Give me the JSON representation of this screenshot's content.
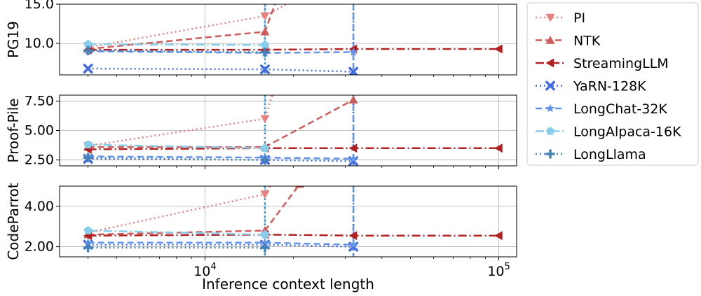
{
  "chart_data": {
    "type": "line",
    "xlabel": "Inference context length",
    "x_scale": "log",
    "xlim": [
      3200,
      115000
    ],
    "x_ticks": [
      {
        "value": 10000,
        "base": "10",
        "exp": "4"
      },
      {
        "value": 100000,
        "base": "10",
        "exp": "5"
      }
    ],
    "grid": true,
    "legend_position": "right",
    "series": [
      {
        "name": "PI",
        "color": "#e88080",
        "linestyle": "dotted",
        "marker": "triangle-down"
      },
      {
        "name": "NTK",
        "color": "#cd5c5c",
        "linestyle": "dashed",
        "marker": "triangle-up"
      },
      {
        "name": "StreamingLLM",
        "color": "#b22222",
        "linestyle": "dashdot",
        "marker": "triangle-left"
      },
      {
        "name": "YaRN-128K",
        "color": "#4169e1",
        "linestyle": "dotted",
        "marker": "x"
      },
      {
        "name": "LongChat-32K",
        "color": "#6495ed",
        "linestyle": "dashed",
        "marker": "star"
      },
      {
        "name": "LongAlpaca-16K",
        "color": "#87ceeb",
        "linestyle": "dashdot",
        "marker": "pentagon"
      },
      {
        "name": "LongLlama",
        "color": "#4682b4",
        "linestyle": "dotted",
        "marker": "plus"
      }
    ],
    "panels": [
      {
        "ylabel": "PG19",
        "ylim": [
          6,
          15
        ],
        "yticks": [
          10,
          15
        ],
        "ytick_labels": [
          "10.0",
          "15.0"
        ],
        "data": {
          "PI": [
            [
              4000,
              9.5
            ],
            [
              16000,
              13.5
            ],
            [
              20000,
              15.5
            ]
          ],
          "NTK": [
            [
              4000,
              9.3
            ],
            [
              16000,
              11.5
            ],
            [
              17500,
              15.5
            ]
          ],
          "StreamingLLM": [
            [
              4000,
              9.2
            ],
            [
              16000,
              9.2
            ],
            [
              32000,
              9.3
            ],
            [
              100000,
              9.3
            ]
          ],
          "YaRN-128K": [
            [
              4000,
              6.8
            ],
            [
              16000,
              6.7
            ],
            [
              32000,
              6.4
            ]
          ],
          "LongChat-32K": [
            [
              4000,
              9.0
            ],
            [
              16000,
              8.8
            ],
            [
              32000,
              8.9
            ]
          ],
          "LongAlpaca-16K": [
            [
              4000,
              9.9
            ],
            [
              16000,
              9.8
            ]
          ],
          "LongLlama": [
            [
              4000,
              9.1
            ],
            [
              16000,
              8.9
            ]
          ]
        },
        "blowups": [
          {
            "series": "LongAlpaca-16K",
            "x": 16000,
            "style": "dashdot"
          },
          {
            "series": "LongLlama",
            "x": 16000,
            "style": "dotted"
          },
          {
            "series": "YaRN-128K",
            "x": 32000,
            "style": "dotted"
          },
          {
            "series": "LongChat-32K",
            "x": 32000,
            "style": "dashed"
          }
        ]
      },
      {
        "ylabel": "Proof-Pile",
        "ylim": [
          2.0,
          8.0
        ],
        "yticks": [
          2.5,
          5.0,
          7.5
        ],
        "ytick_labels": [
          "2.50",
          "5.00",
          "7.50"
        ],
        "data": {
          "PI": [
            [
              4000,
              3.7
            ],
            [
              16000,
              6.0
            ],
            [
              17000,
              8.2
            ]
          ],
          "NTK": [
            [
              4000,
              3.6
            ],
            [
              16000,
              3.6
            ],
            [
              32000,
              7.6
            ]
          ],
          "StreamingLLM": [
            [
              4000,
              3.4
            ],
            [
              16000,
              3.5
            ],
            [
              32000,
              3.5
            ],
            [
              100000,
              3.5
            ]
          ],
          "YaRN-128K": [
            [
              4000,
              2.6
            ],
            [
              16000,
              2.5
            ],
            [
              32000,
              2.4
            ]
          ],
          "LongChat-32K": [
            [
              4000,
              2.8
            ],
            [
              16000,
              2.7
            ],
            [
              32000,
              2.6
            ]
          ],
          "LongAlpaca-16K": [
            [
              4000,
              3.8
            ],
            [
              16000,
              3.5
            ]
          ],
          "LongLlama": [
            [
              4000,
              2.7
            ],
            [
              16000,
              2.5
            ]
          ]
        },
        "blowups": [
          {
            "series": "LongAlpaca-16K",
            "x": 16000,
            "style": "dashdot"
          },
          {
            "series": "LongLlama",
            "x": 16000,
            "style": "dotted"
          },
          {
            "series": "YaRN-128K",
            "x": 32000,
            "style": "dotted"
          },
          {
            "series": "LongChat-32K",
            "x": 32000,
            "style": "dashed"
          }
        ]
      },
      {
        "ylabel": "CodeParrot",
        "ylim": [
          1.5,
          5.0
        ],
        "yticks": [
          2.0,
          4.0
        ],
        "ytick_labels": [
          "2.00",
          "4.00"
        ],
        "data": {
          "PI": [
            [
              4000,
              2.7
            ],
            [
              16000,
              4.6
            ],
            [
              17000,
              5.2
            ]
          ],
          "NTK": [
            [
              4000,
              2.6
            ],
            [
              16000,
              2.8
            ],
            [
              21000,
              5.1
            ]
          ],
          "StreamingLLM": [
            [
              4000,
              2.55
            ],
            [
              16000,
              2.6
            ],
            [
              32000,
              2.55
            ],
            [
              100000,
              2.55
            ]
          ],
          "YaRN-128K": [
            [
              4000,
              2.1
            ],
            [
              16000,
              2.1
            ],
            [
              32000,
              2.0
            ]
          ],
          "LongChat-32K": [
            [
              4000,
              2.2
            ],
            [
              16000,
              2.2
            ],
            [
              32000,
              2.1
            ]
          ],
          "LongAlpaca-16K": [
            [
              4000,
              2.8
            ],
            [
              16000,
              2.6
            ]
          ],
          "LongLlama": [
            [
              4000,
              1.95
            ],
            [
              16000,
              1.95
            ]
          ]
        },
        "blowups": [
          {
            "series": "LongAlpaca-16K",
            "x": 16000,
            "style": "dashdot"
          },
          {
            "series": "LongLlama",
            "x": 16000,
            "style": "dotted"
          },
          {
            "series": "YaRN-128K",
            "x": 32000,
            "style": "dotted"
          },
          {
            "series": "LongChat-32K",
            "x": 32000,
            "style": "dashed"
          }
        ]
      }
    ]
  }
}
